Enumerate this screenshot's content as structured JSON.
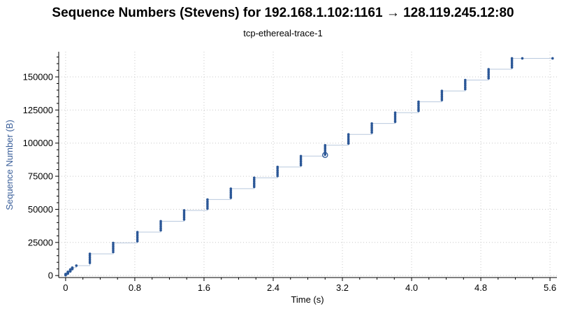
{
  "chart_data": {
    "type": "scatter",
    "title": "Sequence Numbers (Stevens) for 192.168.1.102:1161 → 128.119.245.12:80",
    "subtitle": "tcp-ethereal-trace-1",
    "xlabel": "Time (s)",
    "ylabel": "Sequence Number (B)",
    "xlim": [
      -0.08,
      5.68
    ],
    "ylim": [
      -1500,
      169000
    ],
    "xticks": [
      "0",
      "0.8",
      "1.6",
      "2.4",
      "3.2",
      "4.0",
      "4.8",
      "5.6"
    ],
    "xtick_values": [
      0,
      0.8,
      1.6,
      2.4,
      3.2,
      4.0,
      4.8,
      5.6
    ],
    "yticks": [
      "0",
      "25000",
      "50000",
      "75000",
      "100000",
      "125000",
      "150000"
    ],
    "ytick_values": [
      0,
      25000,
      50000,
      75000,
      100000,
      125000,
      150000
    ],
    "grid": true,
    "color": "#2b5797",
    "bursts": [
      {
        "t": 0.0,
        "y0": 0,
        "y1": 1200
      },
      {
        "t": 0.026,
        "y0": 1200,
        "y1": 2800
      },
      {
        "t": 0.054,
        "y0": 2800,
        "y1": 4600
      },
      {
        "t": 0.077,
        "y0": 4600,
        "y1": 6000
      },
      {
        "t": 0.124,
        "y0": 7500,
        "y1": 7500
      },
      {
        "t": 0.28,
        "y0": 8200,
        "y1": 16400
      },
      {
        "t": 0.55,
        "y0": 16400,
        "y1": 24600
      },
      {
        "t": 0.83,
        "y0": 24600,
        "y1": 32800
      },
      {
        "t": 1.1,
        "y0": 32800,
        "y1": 41000
      },
      {
        "t": 1.37,
        "y0": 41000,
        "y1": 49200
      },
      {
        "t": 1.64,
        "y0": 49200,
        "y1": 57400
      },
      {
        "t": 1.91,
        "y0": 57400,
        "y1": 65600
      },
      {
        "t": 2.18,
        "y0": 65600,
        "y1": 73800
      },
      {
        "t": 2.45,
        "y0": 73800,
        "y1": 82000
      },
      {
        "t": 2.72,
        "y0": 82000,
        "y1": 90200
      },
      {
        "t": 3.0,
        "y0": 90200,
        "y1": 98400
      },
      {
        "t": 3.27,
        "y0": 98400,
        "y1": 106600
      },
      {
        "t": 3.54,
        "y0": 106600,
        "y1": 114800
      },
      {
        "t": 3.81,
        "y0": 114800,
        "y1": 123000
      },
      {
        "t": 4.08,
        "y0": 123000,
        "y1": 131200
      },
      {
        "t": 4.35,
        "y0": 131200,
        "y1": 139400
      },
      {
        "t": 4.62,
        "y0": 139400,
        "y1": 147600
      },
      {
        "t": 4.89,
        "y0": 147600,
        "y1": 155800
      },
      {
        "t": 5.16,
        "y0": 155800,
        "y1": 164000
      },
      {
        "t": 5.28,
        "y0": 164000,
        "y1": 164000
      },
      {
        "t": 5.63,
        "y0": 164000,
        "y1": 164000
      }
    ],
    "points_per_burst": 6,
    "selected_point": {
      "x": 3.0,
      "y": 91000
    }
  }
}
